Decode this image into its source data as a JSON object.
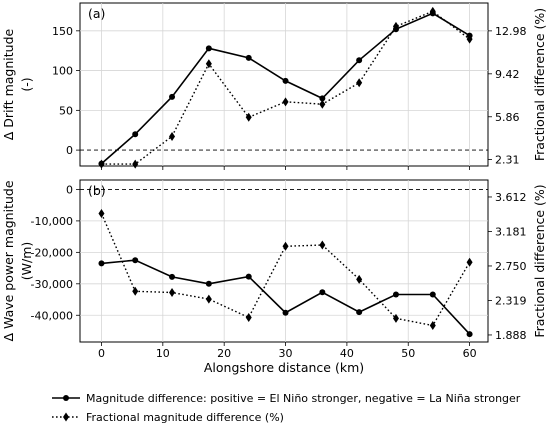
{
  "chart_data": [
    {
      "type": "line",
      "panel_label": "(a)",
      "x": [
        0,
        5.5,
        11.5,
        17.5,
        24,
        30,
        36,
        42,
        48,
        54,
        60
      ],
      "series": [
        {
          "name": "Magnitude difference: positive = El Niño stronger, negative = La Niña stronger",
          "axis": "left",
          "style": "solid",
          "marker": "circle",
          "color": "#000000",
          "values": [
            -17,
            20,
            67,
            128,
            116,
            87,
            65,
            113,
            152,
            172,
            144
          ]
        },
        {
          "name": "Fractional magnitude difference (%)",
          "axis": "right",
          "style": "dotted",
          "marker": "diamond",
          "color": "#000000",
          "values": [
            1.94,
            1.94,
            4.23,
            10.25,
            5.82,
            7.1,
            6.9,
            8.68,
            13.35,
            14.6,
            12.3
          ]
        }
      ],
      "ylabel": "Δ Drift magnitude\n(-)",
      "ylabel_right": "Fractional difference (%)",
      "xlim": [
        -3.5,
        63
      ],
      "ylim": [
        -20,
        185
      ],
      "yticks": [
        0,
        50,
        100,
        150
      ],
      "ytick_labels": [
        "0",
        "50",
        "100",
        "150"
      ],
      "ylim_right": [
        1.78,
        15.29
      ],
      "yticks_right": [
        2.31,
        5.86,
        9.42,
        12.98
      ],
      "ytick_labels_right": [
        "2.31",
        "5.86",
        "9.42",
        "12.98"
      ],
      "zero_line": 0
    },
    {
      "type": "line",
      "panel_label": "(b)",
      "x": [
        0,
        5.5,
        11.5,
        17.5,
        24,
        30,
        36,
        42,
        48,
        54,
        60
      ],
      "series": [
        {
          "name": "Magnitude difference: positive = El Niño stronger, negative = La Niña stronger",
          "axis": "left",
          "style": "solid",
          "marker": "circle",
          "color": "#000000",
          "values": [
            -23500,
            -22500,
            -27800,
            -30000,
            -27700,
            -39200,
            -32700,
            -39000,
            -33400,
            -33400,
            -46000
          ]
        },
        {
          "name": "Fractional magnitude difference (%)",
          "axis": "right",
          "style": "dotted",
          "marker": "diamond",
          "color": "#000000",
          "values": [
            3.406,
            2.434,
            2.418,
            2.336,
            2.106,
            2.996,
            3.012,
            2.583,
            2.095,
            2.006,
            2.797
          ]
        }
      ],
      "ylabel": "Δ Wave power magnitude\n(W/m)",
      "ylabel_right": "Fractional difference (%)",
      "xlabel": "Alongshore distance (km)",
      "xlim": [
        -3.5,
        63
      ],
      "xticks": [
        0,
        10,
        20,
        30,
        40,
        50,
        60
      ],
      "xtick_labels": [
        "0",
        "10",
        "20",
        "30",
        "40",
        "50",
        "60"
      ],
      "ylim": [
        -48500,
        3000
      ],
      "yticks": [
        0,
        -10000,
        -20000,
        -30000,
        -40000
      ],
      "ytick_labels": [
        "0",
        "-10,000",
        "-20,000",
        "-30,000",
        "-40,000"
      ],
      "ylim_right": [
        1.8,
        3.824
      ],
      "yticks_right": [
        3.612,
        3.181,
        2.75,
        2.319,
        1.888
      ],
      "ytick_labels_right": [
        "3.612",
        "3.181",
        "2.750",
        "2.319",
        "1.888"
      ],
      "zero_line": 0
    }
  ],
  "legend": {
    "placement": "bottom",
    "items": [
      {
        "label": "Magnitude difference: positive = El Niño stronger, negative = La Niña stronger",
        "style": "solid",
        "marker": "circle"
      },
      {
        "label": "Fractional magnitude difference (%)",
        "style": "dotted",
        "marker": "diamond"
      }
    ]
  }
}
